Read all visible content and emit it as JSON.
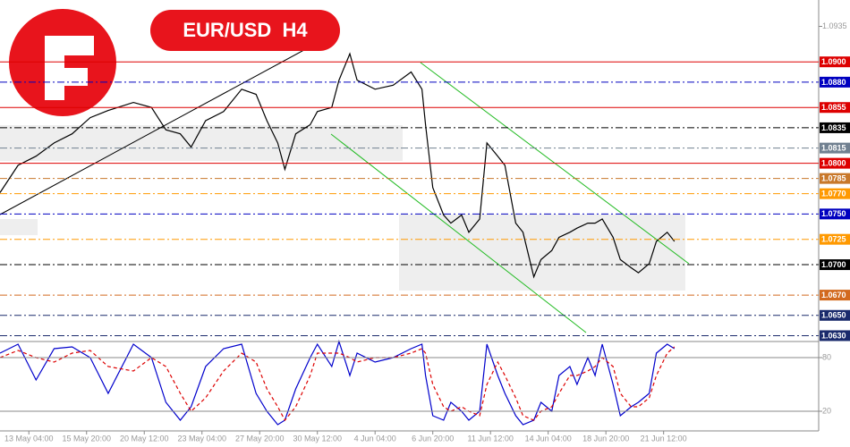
{
  "chart_data": [
    {
      "type": "line",
      "title": "EUR/USD  H4",
      "x": [
        0,
        5,
        10,
        15,
        20,
        25,
        30,
        37,
        42,
        46,
        50,
        53,
        57,
        62,
        67,
        71,
        74,
        77,
        79,
        82,
        86,
        88,
        92,
        94,
        97,
        99,
        104,
        109,
        114,
        117,
        118,
        120,
        123,
        125,
        128,
        130,
        133,
        135,
        138,
        140,
        143,
        145,
        148,
        150,
        153,
        155,
        158,
        160,
        163,
        165,
        167,
        170,
        172,
        175,
        177,
        180,
        182,
        185,
        187
      ],
      "values": [
        1.0771,
        1.0798,
        1.0807,
        1.082,
        1.0829,
        1.0845,
        1.0852,
        1.086,
        1.0855,
        1.0833,
        1.0829,
        1.0816,
        1.0842,
        1.0851,
        1.0873,
        1.0868,
        1.0842,
        1.082,
        1.0794,
        1.0829,
        1.0838,
        1.0851,
        1.0855,
        1.0882,
        1.0908,
        1.0882,
        1.0873,
        1.0877,
        1.089,
        1.0873,
        1.0838,
        1.0776,
        1.0749,
        1.0741,
        1.0749,
        1.0732,
        1.0745,
        1.082,
        1.0807,
        1.0798,
        1.0741,
        1.0732,
        1.0688,
        1.0705,
        1.0714,
        1.0727,
        1.0732,
        1.0736,
        1.0741,
        1.0741,
        1.0745,
        1.0727,
        1.0705,
        1.0697,
        1.0692,
        1.0701,
        1.0723,
        1.0732,
        1.0723
      ],
      "color": "#000000",
      "xlim": [
        0,
        227
      ],
      "ylim": [
        1.0626,
        1.0961
      ],
      "yticks": [
        {
          "value": 1.0935,
          "label": "1.0935"
        }
      ],
      "levels": [
        {
          "value": 1.09,
          "label": "1.0900",
          "color": "#dd0000",
          "style": "solid"
        },
        {
          "value": 1.088,
          "label": "1.0880",
          "color": "#0000c0",
          "style": "dashdot"
        },
        {
          "value": 1.0855,
          "label": "1.0855",
          "color": "#dd0000",
          "style": "solid"
        },
        {
          "value": 1.0835,
          "label": "1.0835",
          "color": "#000000",
          "style": "dashdot"
        },
        {
          "value": 1.0815,
          "label": "1.0815",
          "color": "#708090",
          "style": "dashdot"
        },
        {
          "value": 1.08,
          "label": "1.0800",
          "color": "#dd0000",
          "style": "solid"
        },
        {
          "value": 1.0785,
          "label": "1.0785",
          "color": "#c8782a",
          "style": "dashdot"
        },
        {
          "value": 1.077,
          "label": "1.0770",
          "color": "#ff9900",
          "style": "dashdot"
        },
        {
          "value": 1.075,
          "label": "1.0750",
          "color": "#0000c0",
          "style": "dashdot"
        },
        {
          "value": 1.0725,
          "label": "1.0725",
          "color": "#ff9900",
          "style": "dashdot"
        },
        {
          "value": 1.07,
          "label": "1.0700",
          "color": "#000000",
          "style": "dashdot"
        },
        {
          "value": 1.067,
          "label": "1.0670",
          "color": "#d2691e",
          "style": "dashdot"
        },
        {
          "value": 1.065,
          "label": "1.0650",
          "color": "#1a2a6c",
          "style": "dashdot"
        },
        {
          "value": 1.063,
          "label": "1.0630",
          "color": "#1a2a6c",
          "style": "dashdot"
        }
      ]
    },
    {
      "type": "line",
      "x": [
        0,
        5,
        10,
        15,
        20,
        25,
        30,
        37,
        42,
        46,
        50,
        53,
        57,
        62,
        67,
        71,
        74,
        77,
        79,
        82,
        86,
        88,
        92,
        94,
        97,
        99,
        104,
        109,
        114,
        117,
        118,
        120,
        123,
        125,
        128,
        130,
        133,
        135,
        138,
        140,
        143,
        145,
        148,
        150,
        153,
        155,
        158,
        160,
        163,
        165,
        167,
        170,
        172,
        175,
        177,
        180,
        182,
        185,
        187
      ],
      "series": [
        {
          "color": "#0000cc",
          "values": [
            85,
            95,
            55,
            90,
            92,
            80,
            40,
            95,
            80,
            30,
            10,
            25,
            70,
            90,
            95,
            40,
            20,
            5,
            10,
            45,
            80,
            95,
            70,
            98,
            60,
            85,
            75,
            80,
            90,
            95,
            60,
            15,
            10,
            30,
            20,
            10,
            20,
            95,
            60,
            40,
            15,
            5,
            10,
            30,
            20,
            60,
            70,
            50,
            80,
            60,
            95,
            50,
            15,
            25,
            30,
            40,
            85,
            95,
            90
          ]
        },
        {
          "color": "#dd0000",
          "dashed": true,
          "values": [
            80,
            88,
            80,
            75,
            85,
            88,
            70,
            65,
            80,
            70,
            40,
            20,
            35,
            65,
            85,
            75,
            45,
            25,
            10,
            25,
            60,
            85,
            85,
            85,
            80,
            75,
            80,
            80,
            85,
            90,
            85,
            50,
            25,
            20,
            25,
            20,
            15,
            50,
            75,
            60,
            35,
            15,
            10,
            20,
            25,
            40,
            60,
            60,
            65,
            70,
            80,
            70,
            40,
            25,
            25,
            35,
            60,
            85,
            92
          ]
        }
      ],
      "xlim": [
        0,
        227
      ],
      "ylim": [
        0,
        100
      ],
      "yticks": [
        20,
        80
      ],
      "xticks": [
        {
          "value": 8,
          "label": "13 May 04:00"
        },
        {
          "value": 24,
          "label": "15 May 20:00"
        },
        {
          "value": 40,
          "label": "20 May 12:00"
        },
        {
          "value": 56,
          "label": "23 May 04:00"
        },
        {
          "value": 72,
          "label": "27 May 20:00"
        },
        {
          "value": 88,
          "label": "30 May 12:00"
        },
        {
          "value": 104,
          "label": "4 Jun 04:00"
        },
        {
          "value": 120,
          "label": "6 Jun 20:00"
        },
        {
          "value": 136,
          "label": "11 Jun 12:00"
        },
        {
          "value": 152,
          "label": "14 Jun 04:00"
        },
        {
          "value": 168,
          "label": "18 Jun 20:00"
        },
        {
          "value": 184,
          "label": "21 Jun 12:00"
        }
      ]
    }
  ]
}
